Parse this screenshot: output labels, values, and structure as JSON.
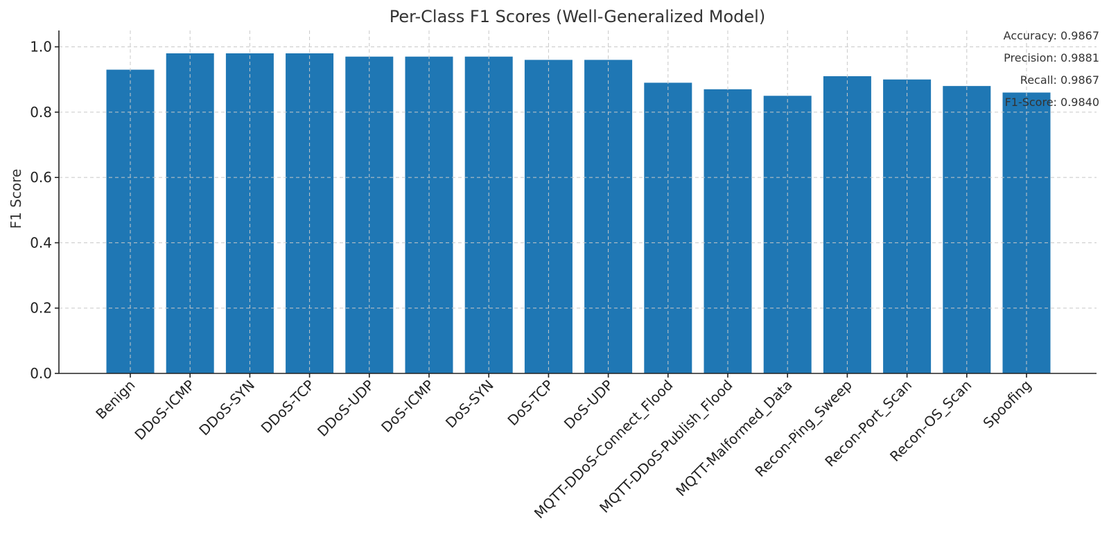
{
  "chart_data": {
    "type": "bar",
    "title": "Per-Class F1 Scores (Well-Generalized Model)",
    "xlabel": "",
    "ylabel": "F1 Score",
    "ylim": [
      0,
      1.05
    ],
    "yticks": [
      "0.0",
      "0.2",
      "0.4",
      "0.6",
      "0.8",
      "1.0"
    ],
    "grid": true,
    "categories": [
      "Benign",
      "DDoS-ICMP",
      "DDoS-SYN",
      "DDoS-TCP",
      "DDoS-UDP",
      "DoS-ICMP",
      "DoS-SYN",
      "DoS-TCP",
      "DoS-UDP",
      "MQTT-DDoS-Connect_Flood",
      "MQTT-DDoS-Publish_Flood",
      "MQTT-Malformed_Data",
      "Recon-Ping_Sweep",
      "Recon-Port_Scan",
      "Recon-OS_Scan",
      "Spoofing"
    ],
    "values": [
      0.93,
      0.98,
      0.98,
      0.98,
      0.97,
      0.97,
      0.97,
      0.96,
      0.96,
      0.89,
      0.87,
      0.85,
      0.91,
      0.9,
      0.88,
      0.86
    ],
    "bar_color": "#1f77b4",
    "annotations": [
      "Accuracy: 0.9867",
      "Precision: 0.9881",
      "Recall: 0.9867",
      "F1-Score: 0.9840"
    ],
    "annotation_placement": "top-right"
  }
}
